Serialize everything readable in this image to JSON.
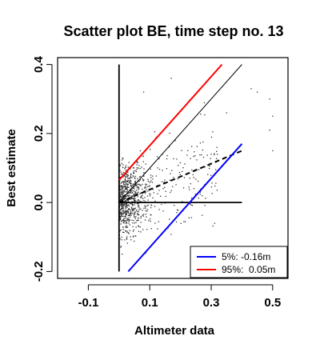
{
  "chart_data": {
    "type": "scatter",
    "title": "Scatter plot BE, time step no. 13",
    "xlabel": "Altimeter data",
    "ylabel": "Best estimate",
    "xlim": [
      -0.2,
      0.55
    ],
    "ylim": [
      -0.22,
      0.42
    ],
    "x_ticks": [
      "-0.1",
      "0.1",
      "0.3",
      "0.5"
    ],
    "x_tick_values": [
      -0.1,
      0.1,
      0.3,
      0.5
    ],
    "y_ticks": [
      "-0.2",
      "0.0",
      "0.2",
      "0.4"
    ],
    "y_tick_values": [
      -0.2,
      0.0,
      0.2,
      0.4
    ],
    "frame": "box",
    "grid": false,
    "point_color": "#333333",
    "point_cloud": {
      "approx_count": 900,
      "center": [
        0.05,
        0.0
      ],
      "x_range": [
        0.0,
        0.5
      ],
      "y_range": [
        -0.2,
        0.36
      ]
    },
    "reference_lines": {
      "zero_vertical": {
        "x": 0.0,
        "y": [
          -0.2,
          0.4
        ],
        "color": "#000000"
      },
      "zero_horizontal": {
        "x": [
          0.0,
          0.4
        ],
        "y": 0.0,
        "color": "#000000"
      },
      "identity": {
        "x": [
          0.0,
          0.4
        ],
        "y": [
          0.0,
          0.4
        ],
        "color": "#000000"
      },
      "regression": {
        "x": [
          0.0,
          0.4
        ],
        "y": [
          0.0,
          0.15
        ],
        "color": "#000000",
        "style": "dashed"
      }
    },
    "series": [
      {
        "name": "5%: -0.16m",
        "x": [
          0.03,
          0.4
        ],
        "y": [
          -0.2,
          0.17
        ],
        "color": "#0000ff"
      },
      {
        "name": "95%:  0.05m",
        "x": [
          0.0,
          0.335
        ],
        "y": [
          0.065,
          0.4
        ],
        "color": "#ff0000"
      }
    ],
    "legend": {
      "position": "bottom-right"
    }
  }
}
